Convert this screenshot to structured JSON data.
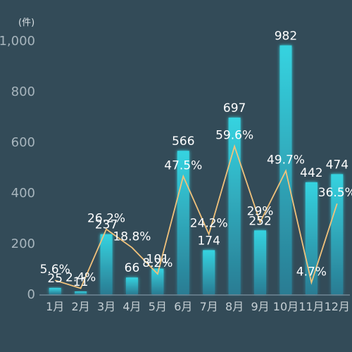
{
  "chart_data": {
    "type": "bar",
    "unit_label": "(件)",
    "categories": [
      "1月",
      "2月",
      "3月",
      "4月",
      "5月",
      "6月",
      "7月",
      "8月",
      "9月",
      "10月",
      "11月",
      "12月"
    ],
    "series": [
      {
        "type": "bar",
        "values": [
          25,
          11,
          237,
          66,
          101,
          566,
          174,
          697,
          252,
          982,
          442,
          474
        ]
      },
      {
        "type": "line",
        "values": [
          5.6,
          2.4,
          26.2,
          18.8,
          8.2,
          47.5,
          24.2,
          59.6,
          29,
          49.7,
          4.7,
          36.5
        ],
        "labels": [
          "5.6%",
          "2.4%",
          "26.2%",
          "18.8%",
          "8.2%",
          "47.5%",
          "24.2%",
          "59.6%",
          "29%",
          "49.7%",
          "4.7%",
          "36.5%"
        ]
      }
    ],
    "y_ticks": [
      "0",
      "200",
      "400",
      "600",
      "800",
      "1,000"
    ],
    "ylim": [
      0,
      1000
    ],
    "grid": false,
    "colors": {
      "background": "#334b58",
      "bar_top": "#35d3e0",
      "bar_bottom": "#2a7c93",
      "line": "#f1c27b",
      "axis": "#8fa6b3"
    }
  }
}
